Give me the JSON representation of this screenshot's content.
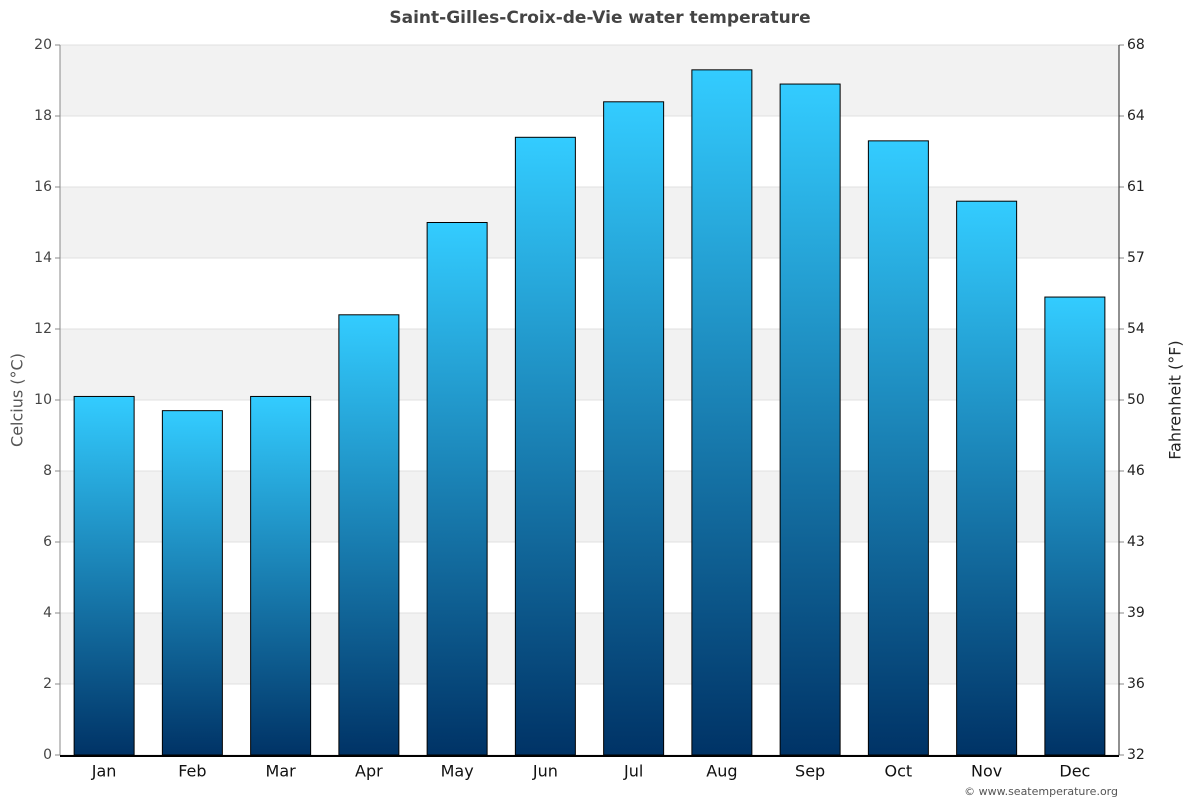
{
  "chart_data": {
    "type": "bar",
    "title": "Saint-Gilles-Croix-de-Vie water temperature",
    "ylabel": "Celcius (°C)",
    "y2label": "Fahrenheit (°F)",
    "categories": [
      "Jan",
      "Feb",
      "Mar",
      "Apr",
      "May",
      "Jun",
      "Jul",
      "Aug",
      "Sep",
      "Oct",
      "Nov",
      "Dec"
    ],
    "values": [
      10.1,
      9.7,
      10.1,
      12.4,
      15.0,
      17.4,
      18.4,
      19.3,
      18.9,
      17.3,
      15.6,
      12.9
    ],
    "color_top": "#33ccff",
    "color_bottom": "#003366",
    "ylim": [
      0,
      20
    ],
    "yticks": [
      0,
      2,
      4,
      6,
      8,
      10,
      12,
      14,
      16,
      18,
      20
    ],
    "y2lim": [
      32,
      68
    ],
    "y2ticks": [
      32,
      {
        "value": 35.6,
        "label": "36"
      },
      {
        "value": 39.2,
        "label": "39"
      },
      {
        "value": 42.8,
        "label": "43"
      },
      {
        "value": 46.4,
        "label": "46"
      },
      50,
      {
        "value": 53.6,
        "label": "54"
      },
      {
        "value": 57.2,
        "label": "57"
      },
      {
        "value": 60.8,
        "label": "61"
      },
      {
        "value": 64.4,
        "label": "64"
      },
      68
    ],
    "grid": true,
    "source": "© www.seatemperature.org"
  }
}
